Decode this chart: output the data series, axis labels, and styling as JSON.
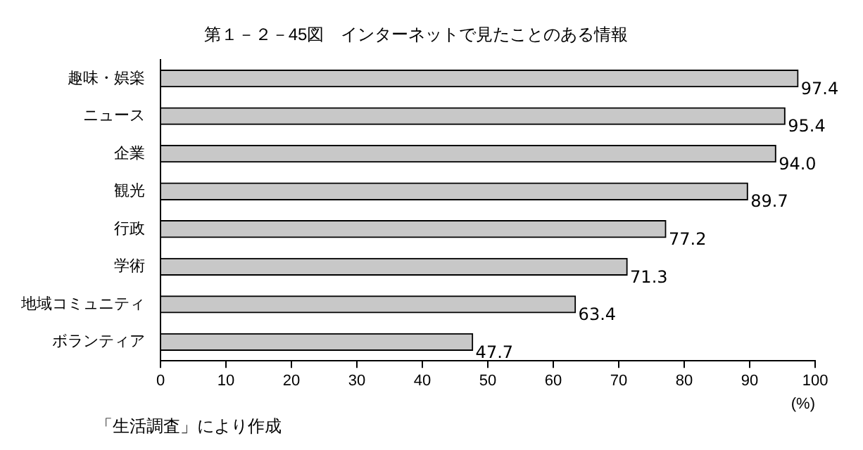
{
  "chart_data": {
    "type": "bar",
    "orientation": "horizontal",
    "title": "第１－２－45図　インターネットで見たことのある情報",
    "categories": [
      "趣味・娯楽",
      "ニュース",
      "企業",
      "観光",
      "行政",
      "学術",
      "地域コミュニティ",
      "ボランティア"
    ],
    "values": [
      97.4,
      95.4,
      94.0,
      89.7,
      77.2,
      71.3,
      63.4,
      47.7
    ],
    "color": "#c8c8c8",
    "xlim": [
      0,
      100
    ],
    "xticks": [
      0,
      10,
      20,
      30,
      40,
      50,
      60,
      70,
      80,
      90,
      100
    ],
    "xlabel": "(%)",
    "grid": false,
    "legend": false,
    "value_labels": [
      "97.4",
      "95.4",
      "94.0",
      "89.7",
      "77.2",
      "71.3",
      "63.4",
      "47.7"
    ],
    "annotations": [
      "「生活調査」により作成"
    ]
  }
}
